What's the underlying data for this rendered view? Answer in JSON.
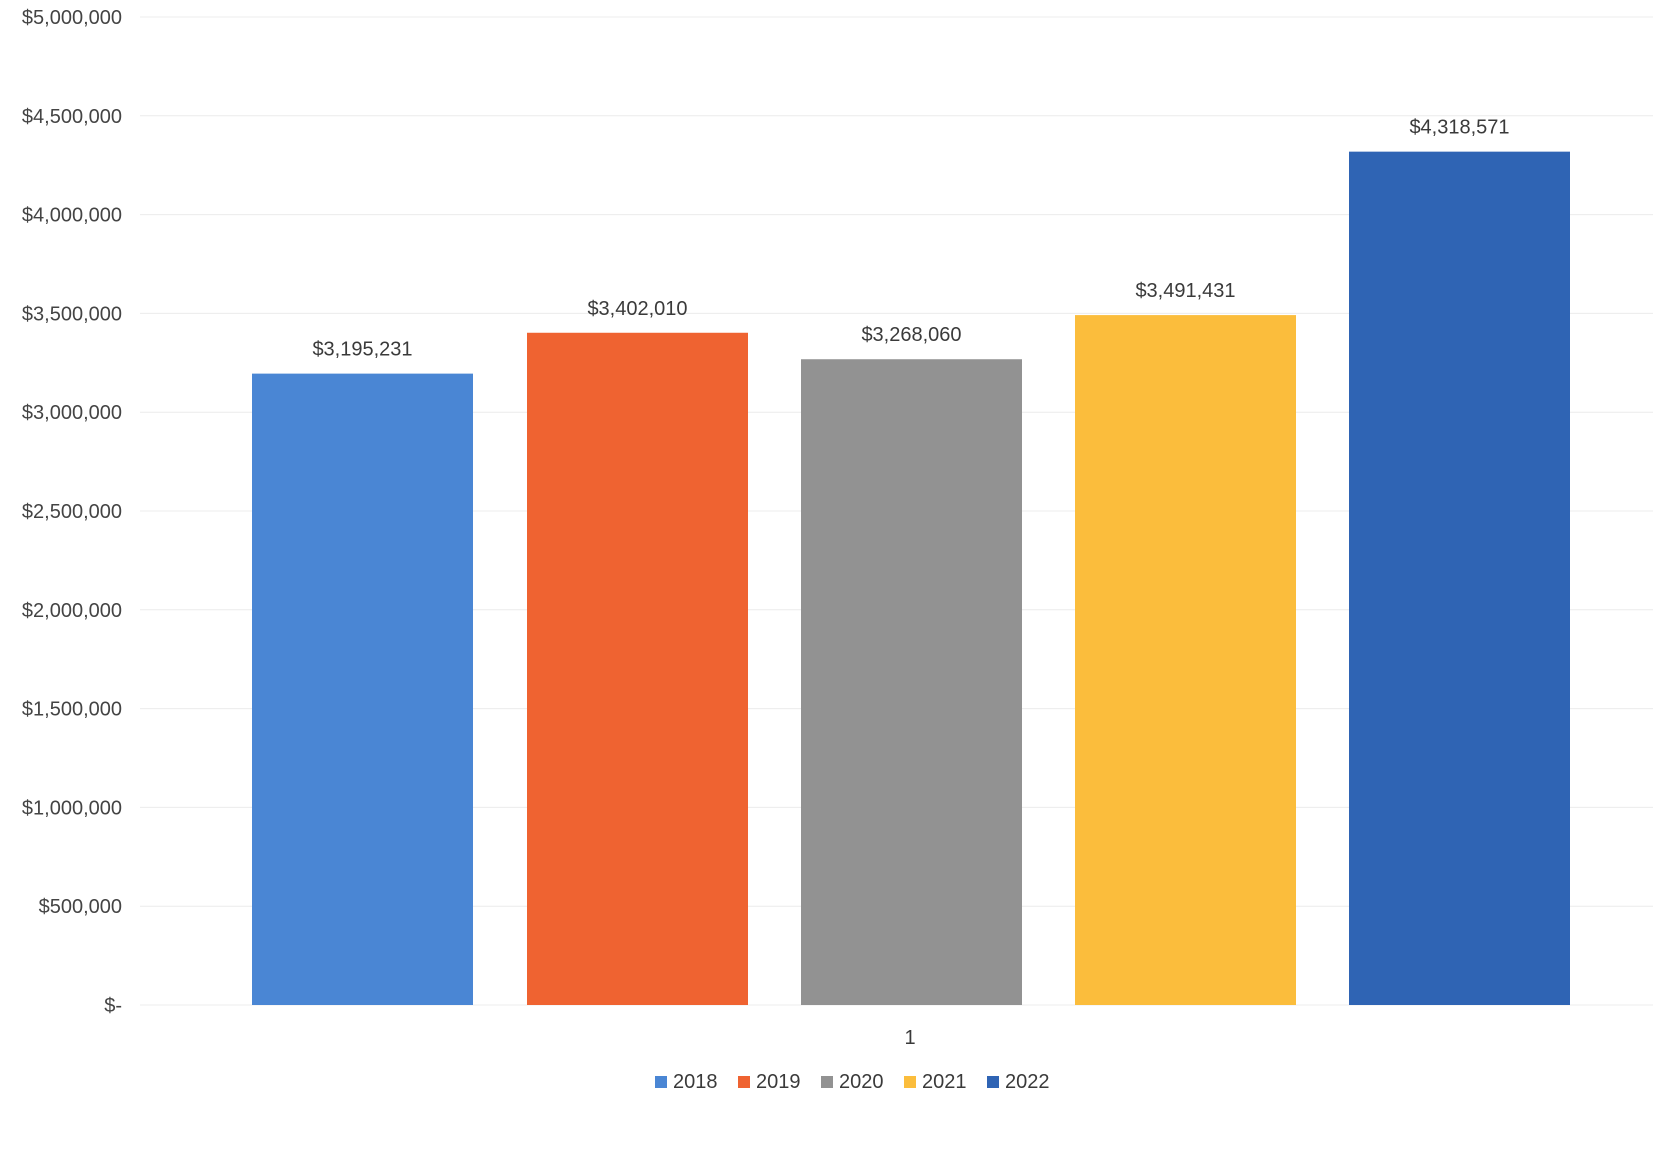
{
  "chart_data": {
    "type": "bar",
    "categories": [
      "1"
    ],
    "series": [
      {
        "name": "2018",
        "values": [
          3195231
        ],
        "color": "#4a86d4",
        "label": "$3,195,231"
      },
      {
        "name": "2019",
        "values": [
          3402010
        ],
        "color": "#ef6331",
        "label": "$3,402,010"
      },
      {
        "name": "2020",
        "values": [
          3268060
        ],
        "color": "#929292",
        "label": "$3,268,060"
      },
      {
        "name": "2021",
        "values": [
          3491431
        ],
        "color": "#fbbd3c",
        "label": "$3,491,431"
      },
      {
        "name": "2022",
        "values": [
          4318571
        ],
        "color": "#2f64b4",
        "label": "$4,318,571"
      }
    ],
    "title": "",
    "xlabel": "",
    "ylabel": "",
    "ylim": [
      0,
      5000000
    ],
    "yticks": [
      {
        "value": 0,
        "label": "$-"
      },
      {
        "value": 500000,
        "label": "$500,000"
      },
      {
        "value": 1000000,
        "label": "$1,000,000"
      },
      {
        "value": 1500000,
        "label": "$1,500,000"
      },
      {
        "value": 2000000,
        "label": "$2,000,000"
      },
      {
        "value": 2500000,
        "label": "$2,500,000"
      },
      {
        "value": 3000000,
        "label": "$3,000,000"
      },
      {
        "value": 3500000,
        "label": "$3,500,000"
      },
      {
        "value": 4000000,
        "label": "$4,000,000"
      },
      {
        "value": 4500000,
        "label": "$4,500,000"
      },
      {
        "value": 5000000,
        "label": "$5,000,000"
      }
    ],
    "grid": true,
    "legend_position": "bottom"
  }
}
